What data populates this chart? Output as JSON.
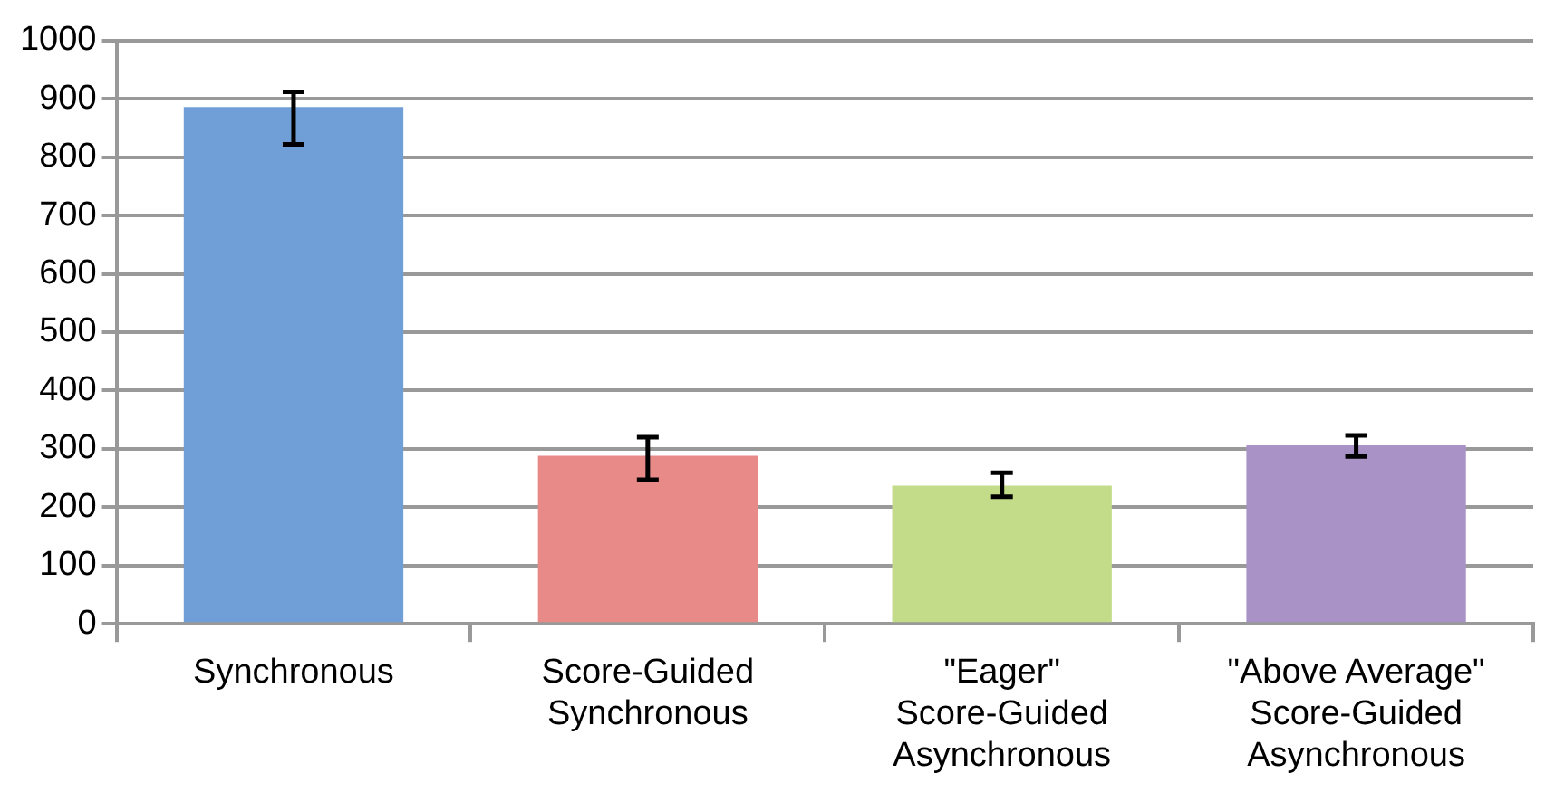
{
  "chart_data": {
    "type": "bar",
    "categories": [
      "Synchronous",
      "Score-Guided Synchronous",
      "\"Eager\" Score-Guided Asynchronous",
      "\"Above Average\" Score-Guided Asynchronous"
    ],
    "values": [
      886,
      288,
      237,
      306
    ],
    "colors": [
      "#6f9fd6",
      "#e88a88",
      "#c3dc8a",
      "#a993c6"
    ],
    "errors": [
      [
        822,
        912
      ],
      [
        247,
        320
      ],
      [
        218,
        259
      ],
      [
        287,
        323
      ]
    ],
    "ylim": [
      0,
      1000
    ],
    "yticks": [
      0,
      100,
      200,
      300,
      400,
      500,
      600,
      700,
      800,
      900,
      1000
    ],
    "grid": "y",
    "legend": false
  }
}
